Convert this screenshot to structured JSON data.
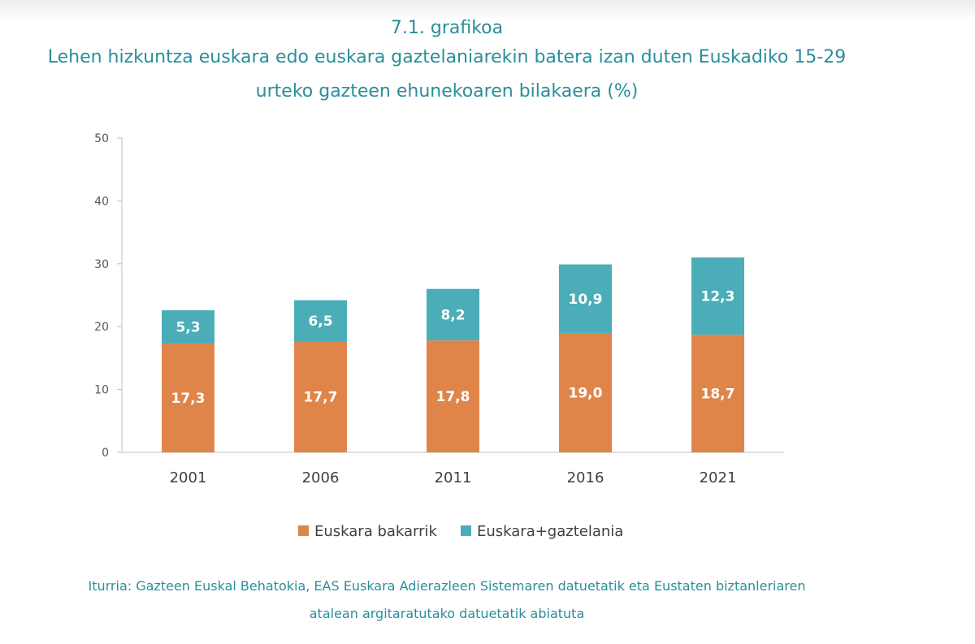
{
  "header": {
    "label": "7.1. grafikoa",
    "title_line1": "Lehen hizkuntza euskara edo euskara gaztelaniarekin batera izan duten Euskadiko 15-29",
    "title_line2": "urteko gazteen ehunekoaren bilakaera (%)"
  },
  "source": {
    "line1": "Iturria: Gazteen Euskal Behatokia, EAS Euskara Adierazleen Sistemaren datuetatik eta Eustaten biztanleriaren",
    "line2": "atalean argitaratutako datuetatik abiatuta"
  },
  "colors": {
    "title": "#2a8e9a",
    "series1": "#e0854a",
    "series2": "#4badb8"
  },
  "chart_data": {
    "type": "bar",
    "stacked": true,
    "categories": [
      "2001",
      "2006",
      "2011",
      "2016",
      "2021"
    ],
    "series": [
      {
        "name": "Euskara bakarrik",
        "values": [
          17.3,
          17.7,
          17.8,
          19.0,
          18.7
        ],
        "labels": [
          "17,3",
          "17,7",
          "17,8",
          "19,0",
          "18,7"
        ],
        "color": "#e0854a"
      },
      {
        "name": "Euskara+gaztelania",
        "values": [
          5.3,
          6.5,
          8.2,
          10.9,
          12.3
        ],
        "labels": [
          "5,3",
          "6,5",
          "8,2",
          "10,9",
          "12,3"
        ],
        "color": "#4badb8"
      }
    ],
    "yticks": [
      "0",
      "10",
      "20",
      "30",
      "40",
      "50"
    ],
    "ylim": [
      0,
      50
    ],
    "xlabel": "",
    "ylabel": "",
    "grid": false,
    "legend": "bottom"
  }
}
